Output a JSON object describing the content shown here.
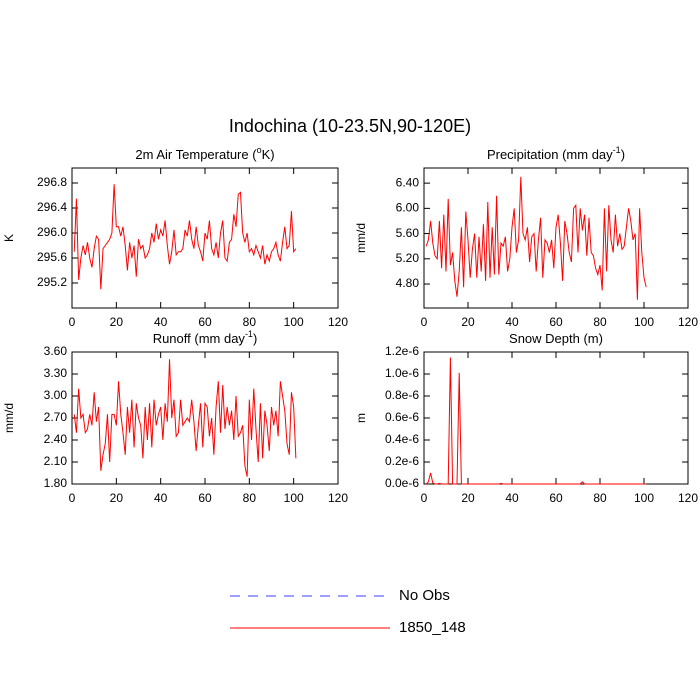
{
  "title": "Indochina (10-23.5N,90-120E)",
  "legend": [
    {
      "name": "No Obs",
      "color": "#3c3cff",
      "dashed": true
    },
    {
      "name": "1850_148",
      "color": "#ff0000",
      "dashed": false
    }
  ],
  "chart_data": [
    {
      "type": "line",
      "title": [
        "2m Air Temperature (",
        "o",
        "K)"
      ],
      "ylabel": "K",
      "xlim": [
        0,
        120
      ],
      "xticks": [
        0,
        20,
        40,
        60,
        80,
        100,
        120
      ],
      "ylim": [
        294.8,
        297.04
      ],
      "yticks": [
        {
          "value": 295.2,
          "label": "295.2"
        },
        {
          "value": 295.6,
          "label": "295.6"
        },
        {
          "value": 296,
          "label": "296.0"
        },
        {
          "value": 296.4,
          "label": "296.4"
        },
        {
          "value": 296.8,
          "label": "296.8"
        }
      ],
      "x": [
        1,
        2,
        3,
        4,
        5,
        6,
        7,
        8,
        9,
        10,
        11,
        12,
        13,
        14,
        15,
        16,
        17,
        18,
        19,
        20,
        21,
        22,
        23,
        24,
        25,
        26,
        27,
        28,
        29,
        30,
        31,
        32,
        33,
        34,
        35,
        36,
        37,
        38,
        39,
        40,
        41,
        42,
        43,
        44,
        45,
        46,
        47,
        48,
        49,
        50,
        51,
        52,
        53,
        54,
        55,
        56,
        57,
        58,
        59,
        60,
        61,
        62,
        63,
        64,
        65,
        66,
        67,
        68,
        69,
        70,
        71,
        72,
        73,
        74,
        75,
        76,
        77,
        78,
        79,
        80,
        81,
        82,
        83,
        84,
        85,
        86,
        87,
        88,
        89,
        90,
        91,
        92,
        93,
        94,
        95,
        96,
        97,
        98,
        99,
        100,
        101
      ],
      "series": [
        {
          "color": "#ff0000",
          "values": [
            295.7,
            296.55,
            295.25,
            295.6,
            295.8,
            295.65,
            295.85,
            295.6,
            295.45,
            295.75,
            295.95,
            295.9,
            295.1,
            295.75,
            295.8,
            295.85,
            295.9,
            296.0,
            296.78,
            296.1,
            296.1,
            295.95,
            296.1,
            295.8,
            295.4,
            295.85,
            295.6,
            295.8,
            295.3,
            295.9,
            295.75,
            295.8,
            295.6,
            295.65,
            295.75,
            296.0,
            295.85,
            296.15,
            295.9,
            296.05,
            295.95,
            296.2,
            295.8,
            295.5,
            295.7,
            296.05,
            295.65,
            295.7,
            295.7,
            295.75,
            296.05,
            295.95,
            296.2,
            295.9,
            295.75,
            296.1,
            295.8,
            295.7,
            295.55,
            296.0,
            295.9,
            296.2,
            295.75,
            295.65,
            295.85,
            295.6,
            296.0,
            296.2,
            295.6,
            295.55,
            295.85,
            295.9,
            296.3,
            296.1,
            296.62,
            296.65,
            296.0,
            295.85,
            296.0,
            295.7,
            295.75,
            295.65,
            295.8,
            295.7,
            295.6,
            295.8,
            295.5,
            295.65,
            295.55,
            295.7,
            295.75,
            295.85,
            295.65,
            295.55,
            295.85,
            296.1,
            295.75,
            295.8,
            296.35,
            295.7,
            295.75
          ]
        }
      ]
    },
    {
      "type": "line",
      "title": [
        "Precipitation (mm day",
        "-1",
        ")"
      ],
      "ylabel": "mm/d",
      "xlim": [
        0,
        120
      ],
      "xticks": [
        0,
        20,
        40,
        60,
        80,
        100,
        120
      ],
      "ylim": [
        4.42,
        6.64
      ],
      "yticks": [
        {
          "value": 4.8,
          "label": "4.80"
        },
        {
          "value": 5.2,
          "label": "5.20"
        },
        {
          "value": 5.6,
          "label": "5.60"
        },
        {
          "value": 6,
          "label": "6.00"
        },
        {
          "value": 6.4,
          "label": "6.40"
        }
      ],
      "x": [
        1,
        2,
        3,
        4,
        5,
        6,
        7,
        8,
        9,
        10,
        11,
        12,
        13,
        14,
        15,
        16,
        17,
        18,
        19,
        20,
        21,
        22,
        23,
        24,
        25,
        26,
        27,
        28,
        29,
        30,
        31,
        32,
        33,
        34,
        35,
        36,
        37,
        38,
        39,
        40,
        41,
        42,
        43,
        44,
        45,
        46,
        47,
        48,
        49,
        50,
        51,
        52,
        53,
        54,
        55,
        56,
        57,
        58,
        59,
        60,
        61,
        62,
        63,
        64,
        65,
        66,
        67,
        68,
        69,
        70,
        71,
        72,
        73,
        74,
        75,
        76,
        77,
        78,
        79,
        80,
        81,
        82,
        83,
        84,
        85,
        86,
        87,
        88,
        89,
        90,
        91,
        92,
        93,
        94,
        95,
        96,
        97,
        98,
        99,
        100,
        101
      ],
      "series": [
        {
          "color": "#ff0000",
          "values": [
            5.4,
            5.5,
            5.8,
            5.45,
            5.25,
            5.2,
            5.8,
            5.05,
            5.9,
            5.0,
            6.15,
            5.1,
            5.3,
            4.85,
            4.6,
            5.0,
            5.7,
            4.75,
            5.95,
            5.5,
            4.9,
            5.35,
            5.6,
            4.9,
            5.55,
            5.0,
            5.75,
            4.85,
            6.1,
            4.9,
            5.7,
            4.95,
            6.2,
            4.95,
            5.45,
            5.4,
            5.55,
            5.0,
            5.2,
            5.7,
            6.0,
            5.3,
            5.5,
            6.5,
            5.6,
            5.5,
            5.7,
            5.15,
            5.55,
            5.6,
            5.0,
            5.5,
            5.85,
            4.9,
            5.5,
            5.45,
            5.3,
            5.5,
            5.05,
            5.7,
            5.9,
            5.45,
            4.85,
            5.8,
            5.6,
            5.3,
            5.15,
            6.0,
            6.05,
            5.3,
            6.0,
            5.65,
            5.9,
            5.25,
            5.85,
            5.3,
            5.25,
            5.05,
            4.95,
            5.1,
            4.7,
            6.0,
            5.0,
            6.05,
            5.5,
            5.3,
            5.9,
            5.4,
            5.6,
            5.35,
            5.4,
            5.7,
            6.0,
            5.8,
            5.5,
            5.6,
            4.55,
            6.0,
            5.3,
            4.9,
            4.75
          ]
        }
      ]
    },
    {
      "type": "line",
      "title": [
        "Runoff (mm day",
        "-1",
        ")"
      ],
      "ylabel": "mm/d",
      "xlim": [
        0,
        120
      ],
      "xticks": [
        0,
        20,
        40,
        60,
        80,
        100,
        120
      ],
      "ylim": [
        1.8,
        3.6
      ],
      "yticks": [
        {
          "value": 1.8,
          "label": "1.80"
        },
        {
          "value": 2.1,
          "label": "2.10"
        },
        {
          "value": 2.4,
          "label": "2.40"
        },
        {
          "value": 2.7,
          "label": "2.70"
        },
        {
          "value": 3,
          "label": "3.00"
        },
        {
          "value": 3.3,
          "label": "3.30"
        },
        {
          "value": 3.6,
          "label": "3.60"
        }
      ],
      "x": [
        1,
        2,
        3,
        4,
        5,
        6,
        7,
        8,
        9,
        10,
        11,
        12,
        13,
        14,
        15,
        16,
        17,
        18,
        19,
        20,
        21,
        22,
        23,
        24,
        25,
        26,
        27,
        28,
        29,
        30,
        31,
        32,
        33,
        34,
        35,
        36,
        37,
        38,
        39,
        40,
        41,
        42,
        43,
        44,
        45,
        46,
        47,
        48,
        49,
        50,
        51,
        52,
        53,
        54,
        55,
        56,
        57,
        58,
        59,
        60,
        61,
        62,
        63,
        64,
        65,
        66,
        67,
        68,
        69,
        70,
        71,
        72,
        73,
        74,
        75,
        76,
        77,
        78,
        79,
        80,
        81,
        82,
        83,
        84,
        85,
        86,
        87,
        88,
        89,
        90,
        91,
        92,
        93,
        94,
        95,
        96,
        97,
        98,
        99,
        100,
        101
      ],
      "series": [
        {
          "color": "#ff0000",
          "values": [
            2.75,
            2.5,
            3.1,
            2.7,
            2.75,
            2.5,
            2.55,
            2.75,
            2.6,
            3.05,
            2.65,
            2.85,
            1.98,
            2.2,
            2.35,
            2.75,
            2.1,
            2.75,
            2.75,
            2.6,
            3.2,
            2.75,
            2.5,
            2.2,
            2.85,
            2.5,
            2.95,
            2.3,
            2.9,
            2.7,
            2.6,
            2.15,
            2.85,
            2.4,
            2.9,
            2.3,
            2.95,
            2.6,
            2.75,
            2.85,
            2.4,
            2.9,
            2.65,
            3.5,
            2.7,
            2.95,
            2.45,
            2.5,
            2.95,
            2.6,
            2.65,
            2.7,
            2.65,
            2.95,
            2.65,
            2.25,
            2.6,
            2.9,
            2.3,
            2.9,
            2.85,
            2.45,
            2.7,
            2.2,
            2.85,
            3.2,
            2.5,
            3.15,
            2.55,
            2.85,
            2.6,
            2.8,
            2.4,
            3.0,
            2.45,
            2.5,
            2.6,
            2.05,
            1.9,
            2.95,
            2.4,
            3.1,
            2.55,
            2.1,
            2.9,
            2.15,
            2.8,
            2.6,
            2.25,
            2.85,
            2.6,
            2.8,
            2.45,
            3.2,
            3.0,
            2.8,
            2.35,
            2.2,
            3.05,
            2.85,
            2.15
          ]
        }
      ]
    },
    {
      "type": "line",
      "title": [
        "Snow Depth (m)"
      ],
      "ylabel": "m",
      "xlim": [
        0,
        120
      ],
      "xticks": [
        0,
        20,
        40,
        60,
        80,
        100,
        120
      ],
      "ylim": [
        0,
        1.2e-06
      ],
      "yticks": [
        {
          "value": 0,
          "label": "0.0e-6"
        },
        {
          "value": 2e-07,
          "label": "0.2e-6"
        },
        {
          "value": 4e-07,
          "label": "0.4e-6"
        },
        {
          "value": 6e-07,
          "label": "0.6e-6"
        },
        {
          "value": 8e-07,
          "label": "0.8e-6"
        },
        {
          "value": 1e-06,
          "label": "1.0e-6"
        },
        {
          "value": 1.2e-06,
          "label": "1.2e-6"
        }
      ],
      "x": [
        1,
        2,
        3,
        4,
        5,
        6,
        7,
        8,
        9,
        10,
        11,
        12,
        13,
        14,
        15,
        16,
        17,
        18,
        19,
        20,
        21,
        22,
        23,
        24,
        25,
        26,
        27,
        28,
        29,
        30,
        31,
        32,
        33,
        34,
        35,
        36,
        37,
        38,
        39,
        40,
        41,
        42,
        43,
        44,
        45,
        46,
        47,
        48,
        49,
        50,
        51,
        52,
        53,
        54,
        55,
        56,
        57,
        58,
        59,
        60,
        61,
        62,
        63,
        64,
        65,
        66,
        67,
        68,
        69,
        70,
        71,
        72,
        73,
        74,
        75,
        76,
        77,
        78,
        79,
        80,
        81,
        82,
        83,
        84,
        85,
        86,
        87,
        88,
        89,
        90,
        91,
        92,
        93,
        94,
        95,
        96,
        97,
        98,
        99,
        100,
        101
      ],
      "series": [
        {
          "color": "#ff0000",
          "values": [
            0,
            2e-08,
            1e-07,
            1e-08,
            0,
            0,
            5e-09,
            0,
            0,
            0,
            0,
            1.15e-06,
            0,
            0,
            0,
            1.01e-06,
            0,
            0,
            0,
            0,
            0,
            0,
            0,
            0,
            0,
            0,
            0,
            0,
            0,
            0,
            0,
            0,
            0,
            0,
            5e-09,
            0,
            0,
            0,
            0,
            0,
            0,
            0,
            0,
            0,
            0,
            0,
            0,
            0,
            0,
            0,
            0,
            0,
            0,
            0,
            0,
            0,
            0,
            0,
            0,
            0,
            0,
            0,
            0,
            0,
            0,
            0,
            0,
            0,
            0,
            0,
            0,
            2e-08,
            0,
            0,
            0,
            0,
            0,
            0,
            0,
            0,
            0,
            0,
            0,
            0,
            0,
            0,
            0,
            0,
            0,
            0,
            0,
            0,
            0,
            0,
            0,
            0,
            0,
            0,
            0,
            0,
            0
          ]
        }
      ]
    }
  ]
}
